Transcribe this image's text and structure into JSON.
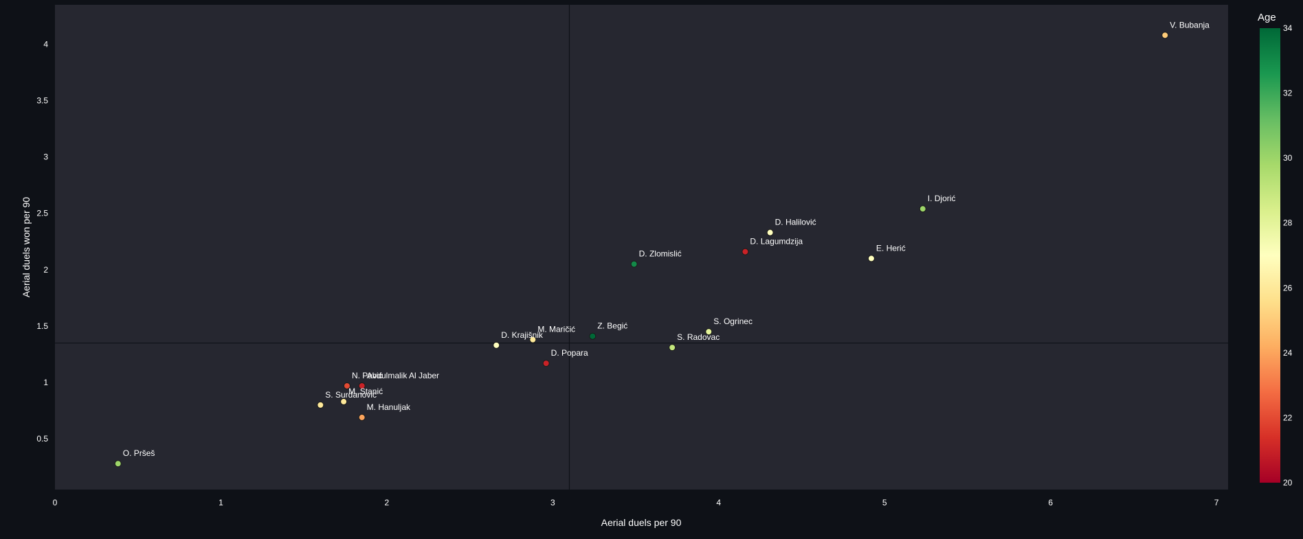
{
  "chart_data": {
    "type": "scatter",
    "title": "",
    "xlabel": "Aerial duels per 90",
    "ylabel": "Aerial duels won per 90",
    "xlim": [
      0,
      7.07
    ],
    "ylim": [
      0.05,
      4.35
    ],
    "xticks": [
      0,
      1,
      2,
      3,
      4,
      5,
      6,
      7
    ],
    "yticks": [
      0.5,
      1,
      1.5,
      2,
      2.5,
      3,
      3.5,
      4
    ],
    "xtick_labels": [
      "0",
      "1",
      "2",
      "3",
      "4",
      "5",
      "6",
      "7"
    ],
    "ytick_labels": [
      "0.5",
      "1",
      "1.5",
      "2",
      "2.5",
      "3",
      "3.5",
      "4"
    ],
    "reference_lines": {
      "x": 3.1,
      "y": 1.35
    },
    "colorbar": {
      "title": "Age",
      "min": 20,
      "max": 34,
      "ticks": [
        20,
        22,
        24,
        26,
        28,
        30,
        32,
        34
      ],
      "tick_labels": [
        "20",
        "22",
        "24",
        "26",
        "28",
        "30",
        "32",
        "34"
      ],
      "colorscale": [
        "#a50026",
        "#d73027",
        "#f46d43",
        "#fdae61",
        "#fee08b",
        "#ffffbf",
        "#d9ef8b",
        "#a6d96a",
        "#66bd63",
        "#1a9850",
        "#006837"
      ]
    },
    "points": [
      {
        "name": "V. Bubanja",
        "x": 6.69,
        "y": 4.08,
        "age": 25
      },
      {
        "name": "I. Djorić",
        "x": 5.23,
        "y": 2.54,
        "age": 30
      },
      {
        "name": "D. Halilović",
        "x": 4.31,
        "y": 2.33,
        "age": 27
      },
      {
        "name": "D. Lagumdzija",
        "x": 4.16,
        "y": 2.16,
        "age": 21
      },
      {
        "name": "E. Herić",
        "x": 4.92,
        "y": 2.1,
        "age": 27
      },
      {
        "name": "D. Zlomislić",
        "x": 3.49,
        "y": 2.05,
        "age": 33
      },
      {
        "name": "S. Ogrinec",
        "x": 3.94,
        "y": 1.45,
        "age": 28
      },
      {
        "name": "Z. Begić",
        "x": 3.24,
        "y": 1.41,
        "age": 34
      },
      {
        "name": "M. Maričić",
        "x": 2.88,
        "y": 1.38,
        "age": 26
      },
      {
        "name": "D. Krajišnik",
        "x": 2.66,
        "y": 1.33,
        "age": 27
      },
      {
        "name": "S. Radovac",
        "x": 3.72,
        "y": 1.31,
        "age": 29
      },
      {
        "name": "D. Popara",
        "x": 2.96,
        "y": 1.17,
        "age": 21
      },
      {
        "name": "N. Pavić",
        "x": 1.76,
        "y": 0.97,
        "age": 22
      },
      {
        "name": "Abdulmalik Al Jaber",
        "x": 1.85,
        "y": 0.97,
        "age": 21
      },
      {
        "name": "M. Stanić",
        "x": 1.74,
        "y": 0.83,
        "age": 26
      },
      {
        "name": "S. Surdanović",
        "x": 1.6,
        "y": 0.8,
        "age": 26
      },
      {
        "name": "M. Hanuljak",
        "x": 1.85,
        "y": 0.69,
        "age": 24
      },
      {
        "name": "O. Pršeš",
        "x": 0.38,
        "y": 0.28,
        "age": 30
      }
    ]
  }
}
